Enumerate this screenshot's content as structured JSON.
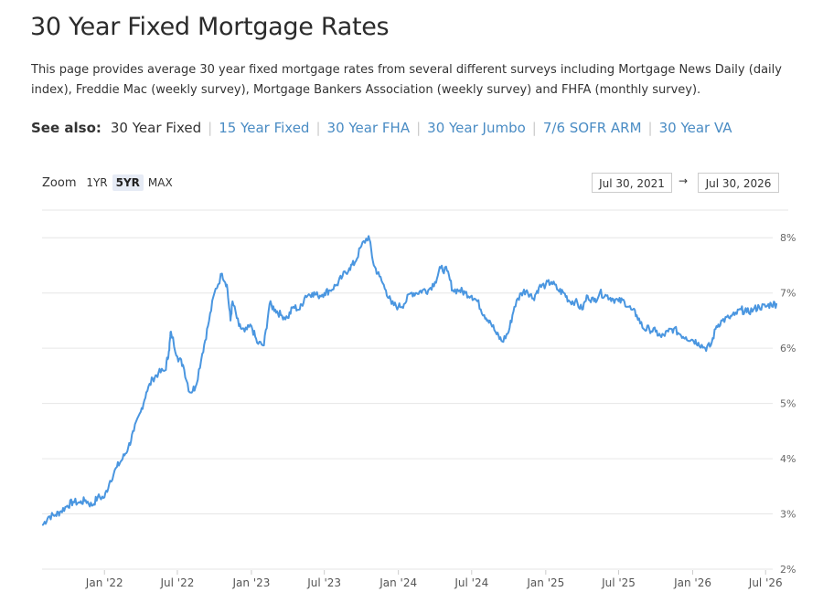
{
  "page": {
    "title": "30 Year Fixed Mortgage Rates",
    "description": "This page provides average 30 year fixed mortgage rates from several different surveys including Mortgage News Daily (daily index), Freddie Mac (weekly survey), Mortgage Bankers Association (weekly survey) and FHFA (monthly survey)."
  },
  "see_also": {
    "label": "See also:",
    "items": [
      "30 Year Fixed",
      "15 Year Fixed",
      "30 Year FHA",
      "30 Year Jumbo",
      "7/6 SOFR ARM",
      "30 Year VA"
    ],
    "current": "30 Year Fixed",
    "separator": "|"
  },
  "zoom": {
    "label": "Zoom",
    "buttons": [
      "1YR",
      "5YR",
      "MAX"
    ],
    "active": "5YR"
  },
  "range": {
    "from": "Jul 30, 2021",
    "to": "Jul 30, 2026",
    "arrow": "→"
  },
  "colors": {
    "line": "#4a96e0",
    "grid": "#e6e6e6",
    "link": "#4a8cc4"
  },
  "chart_data": {
    "type": "line",
    "title": "",
    "xlabel": "",
    "ylabel": "",
    "yticks": [
      "2%",
      "3%",
      "4%",
      "5%",
      "6%",
      "7%",
      "8%"
    ],
    "ytick_values": [
      2,
      3,
      4,
      5,
      6,
      7,
      8
    ],
    "ylim": [
      2,
      8.5
    ],
    "y_axis_position": "right",
    "xticks": [
      "Jan '22",
      "Jul '22",
      "Jan '23",
      "Jul '23",
      "Jan '24",
      "Jul '24",
      "Jan '25",
      "Jul '25",
      "Jan '26",
      "Jul '26"
    ],
    "xtick_dates": [
      "2022-01-01",
      "2022-07-01",
      "2023-01-01",
      "2023-07-01",
      "2024-01-01",
      "2024-07-01",
      "2025-01-01",
      "2025-07-01",
      "2026-01-01",
      "2026-07-01"
    ],
    "xlim": [
      "2021-07-30",
      "2026-07-30"
    ],
    "grid": true,
    "legend": false,
    "series": [
      {
        "x": [
          "2021-08-01",
          "2021-08-15",
          "2021-09-01",
          "2021-09-15",
          "2021-10-01",
          "2021-10-15",
          "2021-11-01",
          "2021-11-15",
          "2021-12-01",
          "2021-12-15",
          "2022-01-01",
          "2022-01-15",
          "2022-02-01",
          "2022-02-15",
          "2022-03-01",
          "2022-03-15",
          "2022-04-01",
          "2022-04-15",
          "2022-05-01",
          "2022-05-15",
          "2022-06-01",
          "2022-06-10",
          "2022-06-15",
          "2022-07-01",
          "2022-07-15",
          "2022-08-01",
          "2022-08-15",
          "2022-09-01",
          "2022-09-15",
          "2022-10-01",
          "2022-10-20",
          "2022-11-01",
          "2022-11-10",
          "2022-11-15",
          "2022-12-01",
          "2022-12-15",
          "2023-01-01",
          "2023-01-15",
          "2023-02-01",
          "2023-02-15",
          "2023-03-01",
          "2023-03-15",
          "2023-04-01",
          "2023-04-15",
          "2023-05-01",
          "2023-05-15",
          "2023-06-01",
          "2023-06-15",
          "2023-07-01",
          "2023-07-15",
          "2023-08-01",
          "2023-08-15",
          "2023-09-01",
          "2023-09-15",
          "2023-10-01",
          "2023-10-19",
          "2023-11-01",
          "2023-11-15",
          "2023-12-01",
          "2023-12-15",
          "2024-01-01",
          "2024-01-15",
          "2024-02-01",
          "2024-02-15",
          "2024-03-01",
          "2024-03-15",
          "2024-04-01",
          "2024-04-15",
          "2024-05-01",
          "2024-05-15",
          "2024-06-01",
          "2024-06-15",
          "2024-07-01",
          "2024-07-15",
          "2024-08-01",
          "2024-08-15",
          "2024-09-01",
          "2024-09-15",
          "2024-10-01",
          "2024-10-15",
          "2024-11-01",
          "2024-11-15",
          "2024-12-01",
          "2024-12-15",
          "2025-01-01",
          "2025-01-15",
          "2025-02-01",
          "2025-02-15",
          "2025-03-01",
          "2025-03-15",
          "2025-04-01",
          "2025-04-15",
          "2025-05-01",
          "2025-05-15",
          "2025-06-01",
          "2025-06-15",
          "2025-07-01",
          "2025-07-15",
          "2025-08-01",
          "2025-08-15",
          "2025-09-01",
          "2025-09-15",
          "2025-10-01",
          "2025-10-15",
          "2025-11-01",
          "2025-11-15",
          "2025-12-01",
          "2025-12-15",
          "2026-01-01",
          "2026-01-15",
          "2026-02-01",
          "2026-02-15",
          "2026-03-01",
          "2026-03-15",
          "2026-04-01",
          "2026-04-15",
          "2026-05-01",
          "2026-05-15",
          "2026-06-01",
          "2026-06-15",
          "2026-07-01",
          "2026-07-15",
          "2026-07-28"
        ],
        "y": [
          2.8,
          2.95,
          2.98,
          3.05,
          3.15,
          3.22,
          3.2,
          3.25,
          3.15,
          3.3,
          3.3,
          3.6,
          3.85,
          4.0,
          4.2,
          4.5,
          4.85,
          5.2,
          5.45,
          5.55,
          5.6,
          5.95,
          6.3,
          5.85,
          5.7,
          5.2,
          5.3,
          5.9,
          6.4,
          7.0,
          7.35,
          7.15,
          6.5,
          6.85,
          6.4,
          6.3,
          6.4,
          6.1,
          6.05,
          6.8,
          6.7,
          6.6,
          6.55,
          6.75,
          6.7,
          6.95,
          7.0,
          6.95,
          7.0,
          7.05,
          7.15,
          7.3,
          7.45,
          7.55,
          7.85,
          8.03,
          7.5,
          7.3,
          7.05,
          6.8,
          6.75,
          6.8,
          7.0,
          7.0,
          7.05,
          7.05,
          7.2,
          7.45,
          7.4,
          7.05,
          7.05,
          7.0,
          6.95,
          6.85,
          6.6,
          6.5,
          6.25,
          6.12,
          6.3,
          6.75,
          7.0,
          7.05,
          6.9,
          7.1,
          7.15,
          7.2,
          7.05,
          7.0,
          6.85,
          6.85,
          6.7,
          6.95,
          6.85,
          7.0,
          6.95,
          6.9,
          6.85,
          6.85,
          6.7,
          6.6,
          6.35,
          6.35,
          6.3,
          6.2,
          6.3,
          6.35,
          6.25,
          6.2,
          6.15,
          6.1,
          6.0,
          6.05,
          6.4,
          6.5,
          6.55,
          6.6,
          6.7,
          6.65,
          6.7,
          6.75,
          6.75,
          6.8,
          6.8
        ]
      }
    ]
  }
}
